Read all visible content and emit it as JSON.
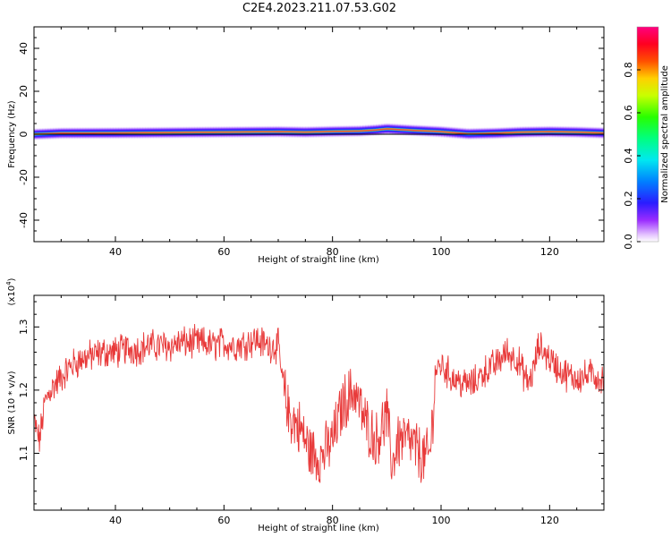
{
  "title": "C2E4.2023.211.07.53.G02",
  "colors": {
    "snr_line": "#e83a3a",
    "spectral_band_core": "#ff3030",
    "axis": "#000000"
  },
  "chart_data": [
    {
      "type": "heatmap",
      "title": "C2E4.2023.211.07.53.G02",
      "xlabel": "Height of straight line (km)",
      "ylabel": "Frequency (Hz)",
      "xlim": [
        25,
        130
      ],
      "ylim": [
        -50,
        50
      ],
      "xticks": [
        40,
        60,
        80,
        100,
        120
      ],
      "yticks": [
        40,
        20,
        0,
        -20,
        -40
      ],
      "colorbar": {
        "label": "Normalized spectral amplitude",
        "range": [
          0.0,
          1.0
        ],
        "ticks": [
          "0.0",
          "0.2",
          "0.4",
          "0.6",
          "0.8"
        ],
        "colormap": "rainbow (violet-blue-cyan-green-yellow-red-magenta)"
      },
      "band": {
        "center_frequency_hz": [
          [
            25,
            0.0
          ],
          [
            30,
            0.5
          ],
          [
            40,
            0.6
          ],
          [
            50,
            0.8
          ],
          [
            60,
            1.0
          ],
          [
            70,
            1.2
          ],
          [
            75,
            1.0
          ],
          [
            80,
            1.3
          ],
          [
            85,
            1.5
          ],
          [
            88,
            2.0
          ],
          [
            90,
            2.5
          ],
          [
            95,
            1.8
          ],
          [
            100,
            1.2
          ],
          [
            105,
            0.2
          ],
          [
            110,
            0.5
          ],
          [
            115,
            1.0
          ],
          [
            120,
            1.2
          ],
          [
            125,
            1.0
          ],
          [
            130,
            0.6
          ]
        ],
        "half_width_hz": 3
      }
    },
    {
      "type": "line",
      "xlabel": "Height of straight line (km)",
      "ylabel": "SNR (10 * v/v)",
      "yscale_note": "(x10^4)",
      "xlim": [
        25,
        130
      ],
      "ylim": [
        1.01,
        1.35
      ],
      "xticks": [
        40,
        60,
        80,
        100,
        120
      ],
      "yticks": [
        1.1,
        1.2,
        1.3
      ],
      "series": [
        {
          "x": [
            25,
            26,
            27,
            28,
            30,
            32,
            34,
            36,
            38,
            40,
            42,
            44,
            46,
            48,
            50,
            52,
            54,
            56,
            58,
            60,
            62,
            64,
            66,
            68,
            70,
            71,
            72,
            74,
            76,
            78,
            80,
            82,
            84,
            86,
            88,
            90,
            91,
            92,
            94,
            96,
            97,
            98,
            99,
            100,
            102,
            104,
            106,
            108,
            110,
            112,
            114,
            116,
            117,
            118,
            120,
            122,
            124,
            126,
            128,
            130
          ],
          "values": [
            1.15,
            1.12,
            1.18,
            1.2,
            1.22,
            1.24,
            1.25,
            1.255,
            1.26,
            1.26,
            1.265,
            1.265,
            1.27,
            1.27,
            1.27,
            1.275,
            1.275,
            1.275,
            1.27,
            1.275,
            1.27,
            1.275,
            1.28,
            1.27,
            1.27,
            1.2,
            1.16,
            1.14,
            1.1,
            1.095,
            1.12,
            1.18,
            1.2,
            1.15,
            1.12,
            1.16,
            1.08,
            1.12,
            1.12,
            1.1,
            1.09,
            1.1,
            1.23,
            1.24,
            1.22,
            1.21,
            1.21,
            1.23,
            1.24,
            1.26,
            1.25,
            1.21,
            1.23,
            1.27,
            1.25,
            1.23,
            1.22,
            1.22,
            1.225,
            1.215
          ],
          "noise_amplitude": 0.022
        }
      ]
    }
  ]
}
